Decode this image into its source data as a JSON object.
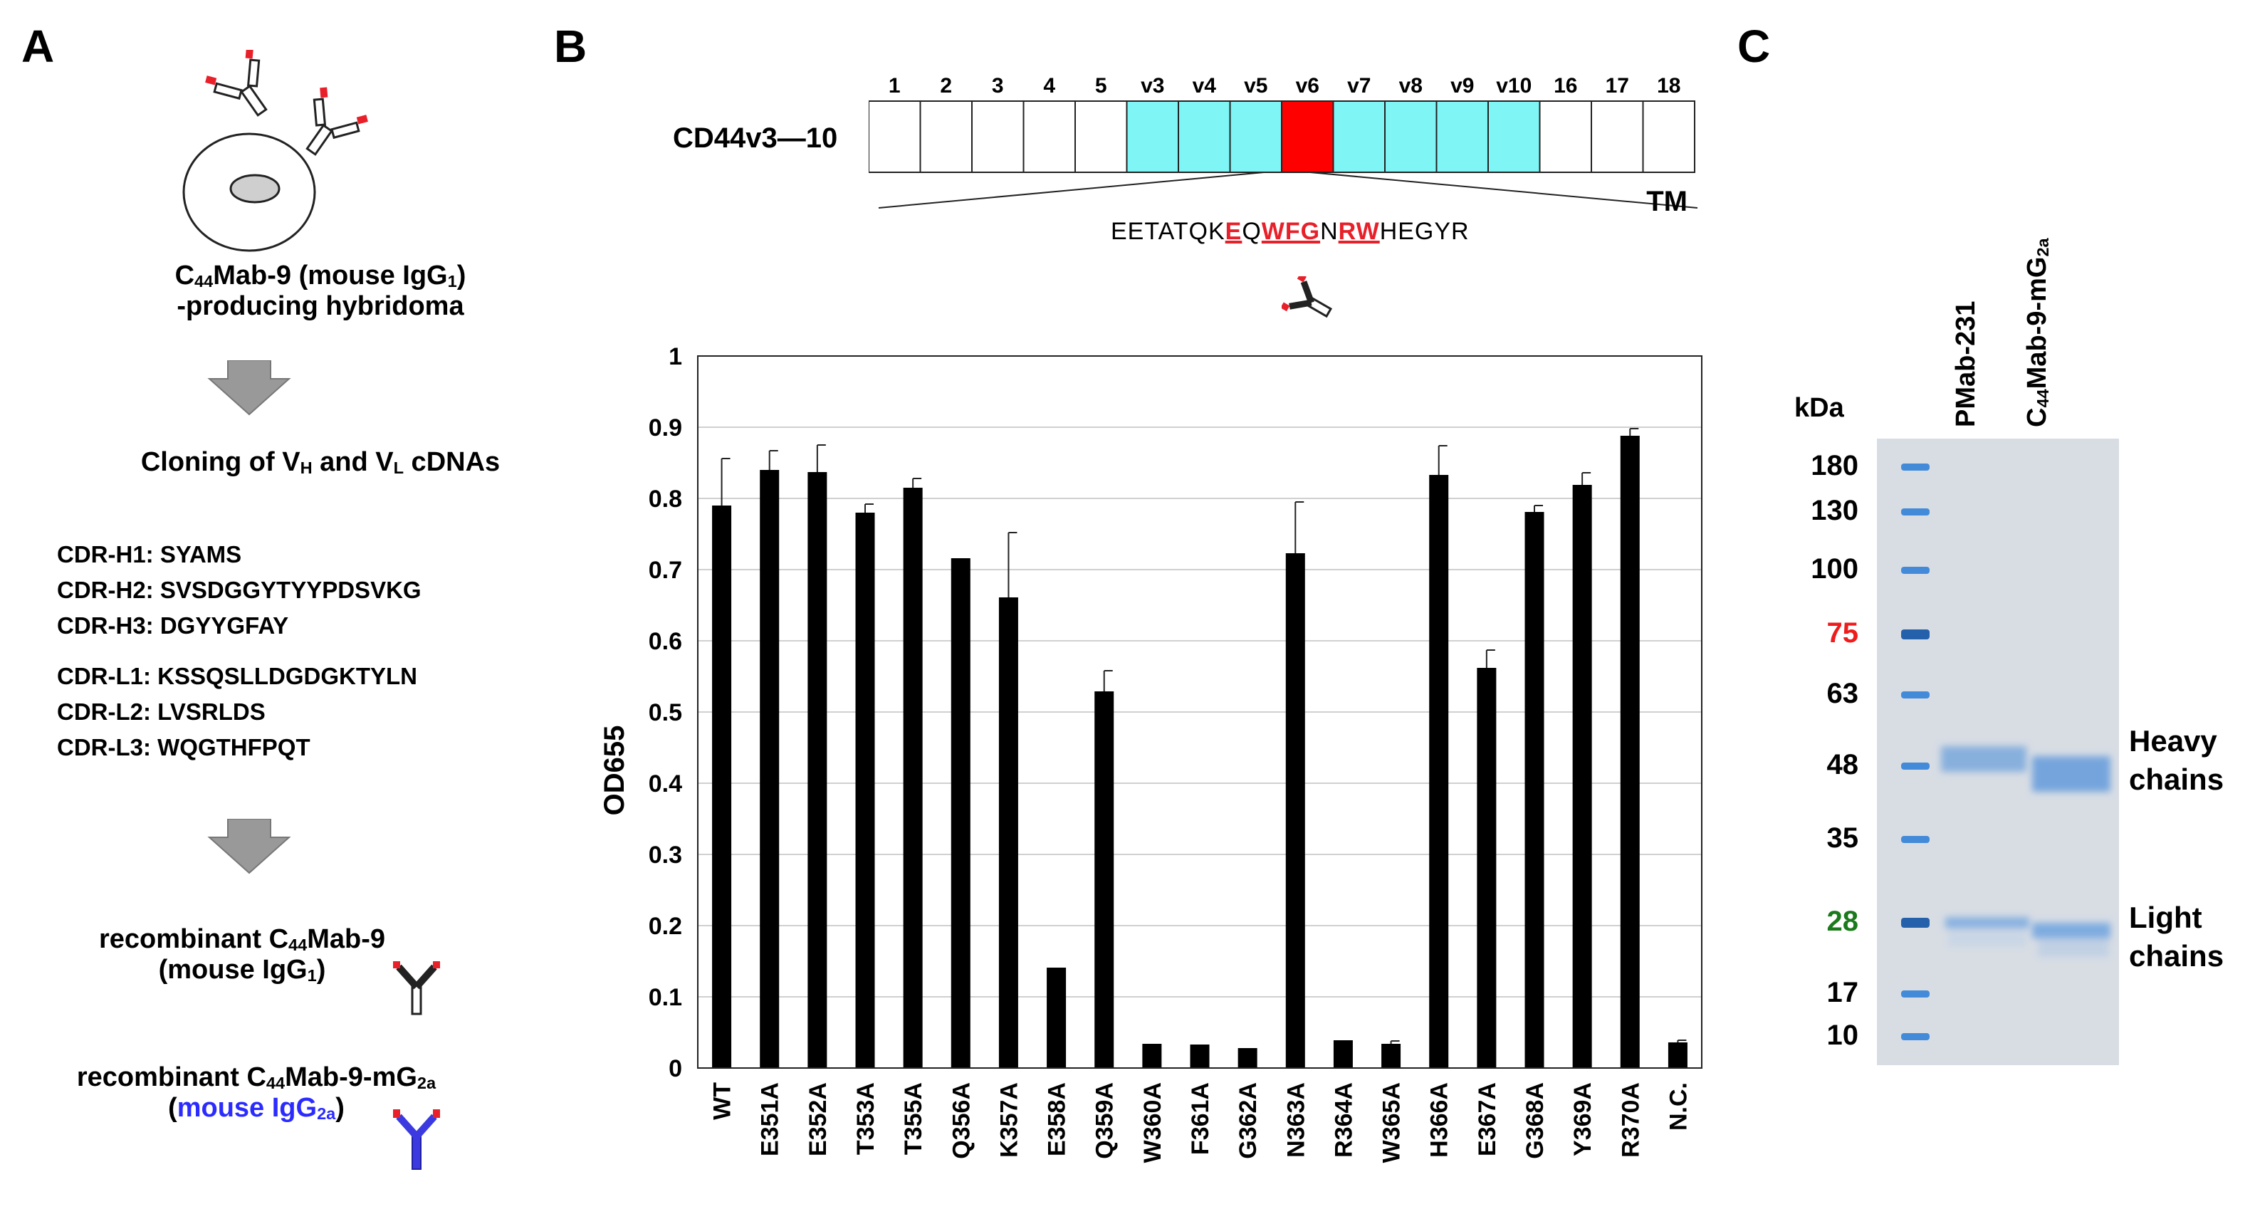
{
  "panel_a": {
    "letter": "A",
    "hybridoma": {
      "line1_pre": "C",
      "line1_sub": "44",
      "line1_mid": "Mab-9 (mouse IgG",
      "line1_sub2": "1",
      "line1_post": ")",
      "line2": "-producing hybridoma"
    },
    "cloning": {
      "pre": "Cloning of V",
      "sub1": "H",
      "mid": " and V",
      "sub2": "L",
      "post": " cDNAs"
    },
    "cdrs_heavy": [
      "CDR-H1: SYAMS",
      "CDR-H2: SVSDGGYTYYPDSVKG",
      "CDR-H3: DGYYGFAY"
    ],
    "cdrs_light": [
      "CDR-L1: KSSQSLLDGDGKTYLN",
      "CDR-L2: LVSRLDS",
      "CDR-L3: WQGTHFPQT"
    ],
    "recomb1": {
      "pre": "recombinant C",
      "sub": "44",
      "post": "Mab-9",
      "line2_pre": "(mouse IgG",
      "line2_sub": "1",
      "line2_post": ")"
    },
    "recomb2": {
      "pre": "recombinant C",
      "sub": "44",
      "post": "Mab-9-mG",
      "sub2": "2a",
      "line2_open": "(",
      "line2_blue": "mouse IgG",
      "line2_blue_sub": "2a",
      "line2_close": ")"
    },
    "colors": {
      "blue": "#2b2bff",
      "antibody_red": "#e8202a"
    }
  },
  "panel_b": {
    "letter": "B",
    "construct_label": "CD44v3—10",
    "exons": [
      "1",
      "2",
      "3",
      "4",
      "5",
      "v3",
      "v4",
      "v5",
      "v6",
      "v7",
      "v8",
      "v9",
      "v10",
      "16",
      "17",
      "18"
    ],
    "tm_label": "TM",
    "sequence": {
      "p1": "EETATQK",
      "e": "E",
      "p2": "Q",
      "wfg": "WFG",
      "p3": "N",
      "rw": "RW",
      "p4": "HEGYR"
    },
    "colors": {
      "variant": "#7ff5f5",
      "v6": "#ff0000",
      "highlight": "#e8202a"
    }
  },
  "chart_data": {
    "type": "bar",
    "ylabel": "OD655",
    "xlabel": "",
    "ylim": [
      0,
      1
    ],
    "yticks": [
      "0",
      "0.1",
      "0.2",
      "0.3",
      "0.4",
      "0.5",
      "0.6",
      "0.7",
      "0.8",
      "0.9",
      "1"
    ],
    "categories": [
      "WT",
      "E351A",
      "E352A",
      "T353A",
      "T355A",
      "Q356A",
      "K357A",
      "E358A",
      "Q359A",
      "W360A",
      "F361A",
      "G362A",
      "N363A",
      "R364A",
      "W365A",
      "H366A",
      "E367A",
      "G368A",
      "Y369A",
      "R370A",
      "N.C."
    ],
    "values": [
      0.79,
      0.84,
      0.837,
      0.78,
      0.815,
      0.716,
      0.661,
      0.141,
      0.529,
      0.034,
      0.033,
      0.028,
      0.723,
      0.039,
      0.034,
      0.833,
      0.562,
      0.781,
      0.819,
      0.888,
      0.036
    ],
    "errors": [
      0.066,
      0.027,
      0.038,
      0.012,
      0.013,
      0.0,
      0.091,
      0.0,
      0.029,
      0.0,
      0.0,
      0.0,
      0.072,
      0.0,
      0.004,
      0.041,
      0.025,
      0.009,
      0.017,
      0.01,
      0.003
    ],
    "grid": true
  },
  "panel_c": {
    "letter": "C",
    "kda": "kDa",
    "markers": [
      "180",
      "130",
      "100",
      "75",
      "63",
      "48",
      "35",
      "28",
      "17",
      "10"
    ],
    "marker_colors": {
      "75": "#ee1c1c",
      "28": "#1b7a1b"
    },
    "lanes": {
      "lane1": "PMab-231",
      "lane2_pre": "C",
      "lane2_sub": "44",
      "lane2_post": "Mab-9-mG",
      "lane2_sub2": "2a"
    },
    "heavy": [
      "Heavy",
      "chains"
    ],
    "light": [
      "Light",
      "chains"
    ]
  }
}
